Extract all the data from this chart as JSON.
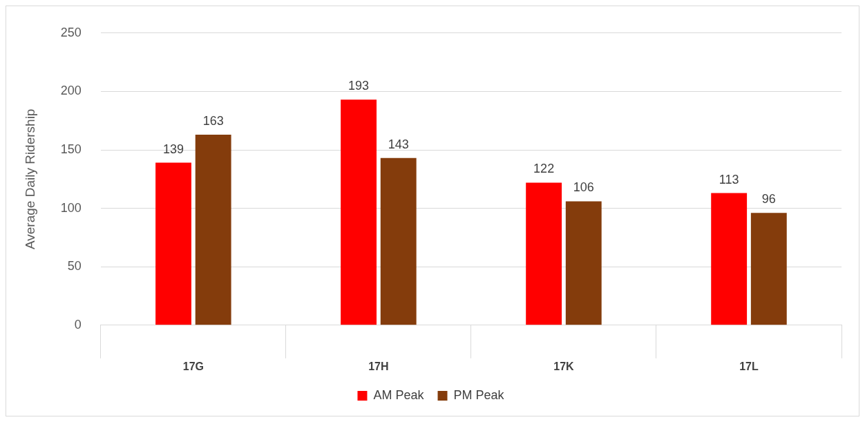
{
  "chart_data": {
    "type": "bar",
    "ylabel": "Average Daily Ridership",
    "categories": [
      "17G",
      "17H",
      "17K",
      "17L"
    ],
    "series": [
      {
        "name": "AM Peak",
        "color": "#ff0000",
        "values": [
          139,
          193,
          122,
          113
        ]
      },
      {
        "name": "PM Peak",
        "color": "#843c0c",
        "values": [
          163,
          143,
          106,
          96
        ]
      }
    ],
    "ylim": [
      0,
      250
    ],
    "yticks": [
      0,
      50,
      100,
      150,
      200,
      250
    ],
    "grid": "y",
    "legend": "bottom",
    "data_labels": true
  }
}
